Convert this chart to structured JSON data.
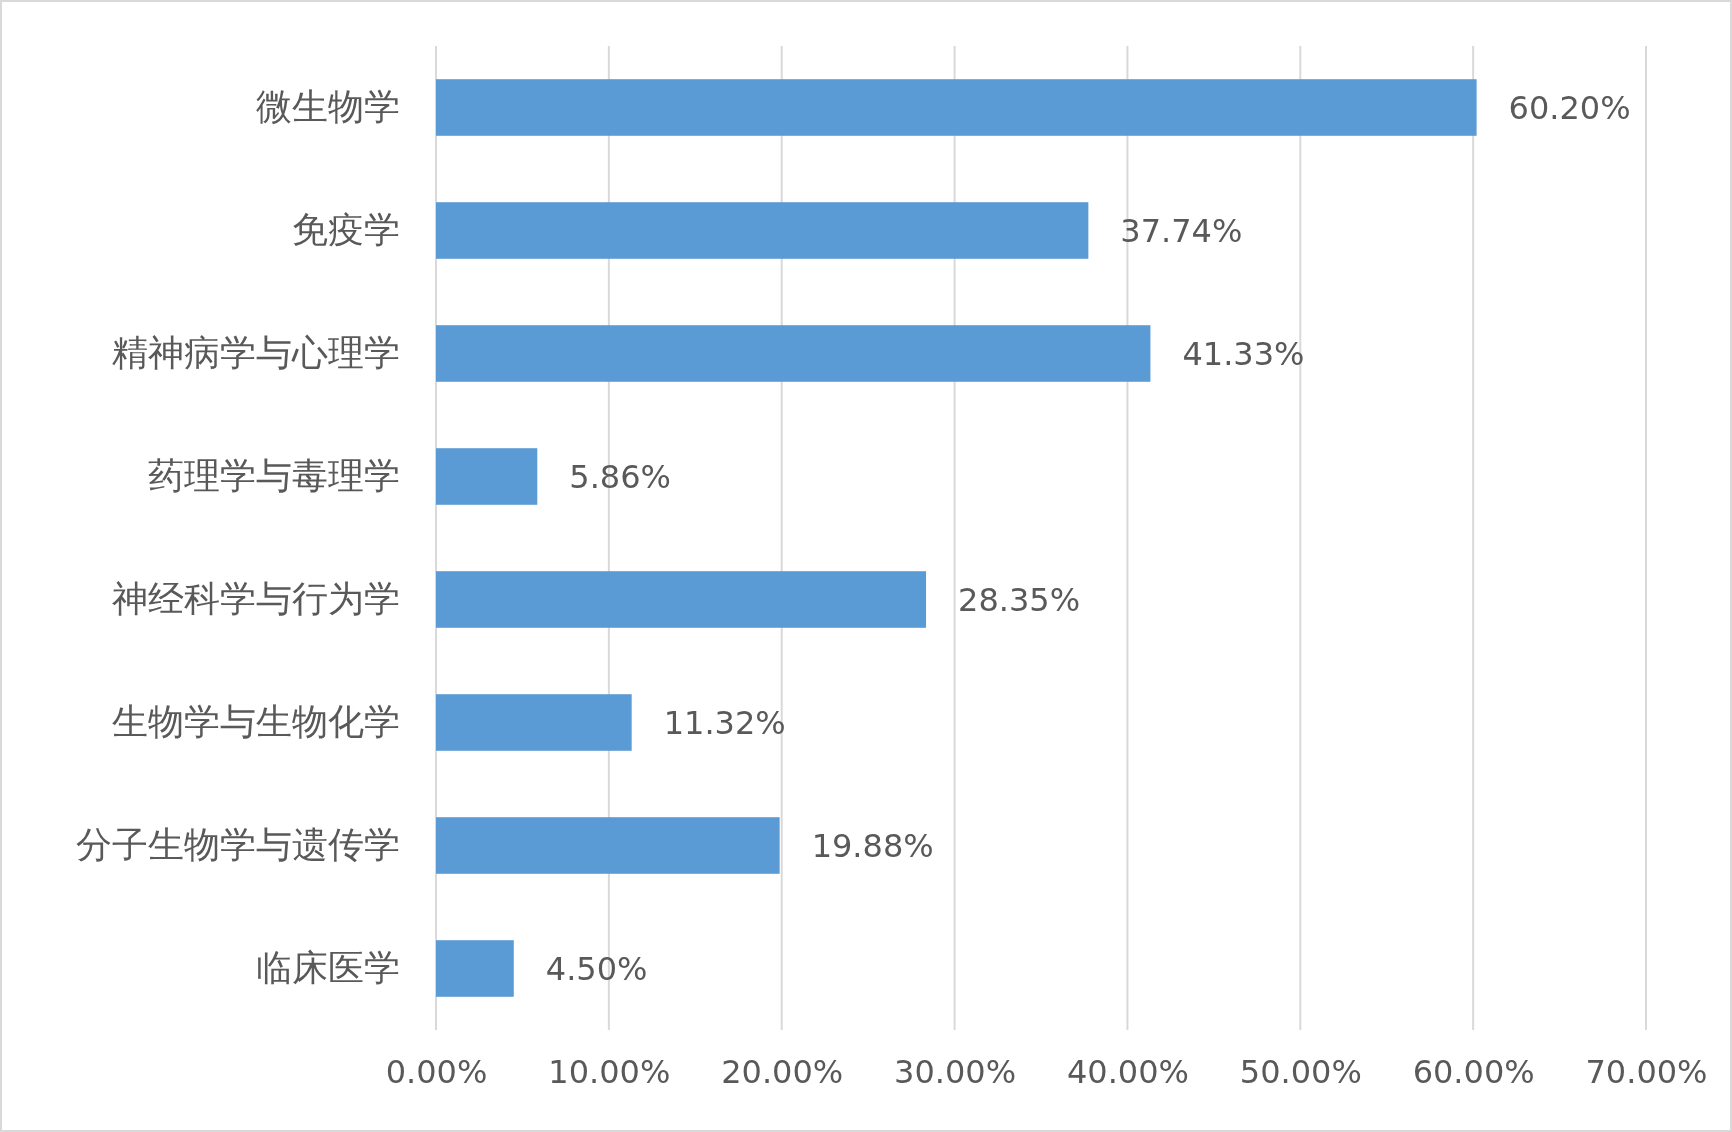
{
  "chart_data": {
    "type": "bar",
    "orientation": "horizontal",
    "categories": [
      "微生物学",
      "免疫学",
      "精神病学与心理学",
      "药理学与毒理学",
      "神经科学与行为学",
      "生物学与生物化学",
      "分子生物学与遗传学",
      "临床医学"
    ],
    "values": [
      60.2,
      37.74,
      41.33,
      5.86,
      28.35,
      11.32,
      19.88,
      4.5
    ],
    "value_labels": [
      "60.20%",
      "37.74%",
      "41.33%",
      "5.86%",
      "28.35%",
      "11.32%",
      "19.88%",
      "4.50%"
    ],
    "color": "#5b9bd5",
    "xlim": [
      0,
      70
    ],
    "xticks": [
      {
        "value": 0,
        "label": "0.00%"
      },
      {
        "value": 10,
        "label": "10.00%"
      },
      {
        "value": 20,
        "label": "20.00%"
      },
      {
        "value": 30,
        "label": "30.00%"
      },
      {
        "value": 40,
        "label": "40.00%"
      },
      {
        "value": 50,
        "label": "50.00%"
      },
      {
        "value": 60,
        "label": "60.00%"
      },
      {
        "value": 70,
        "label": "70.00%"
      }
    ],
    "grid": "x"
  }
}
